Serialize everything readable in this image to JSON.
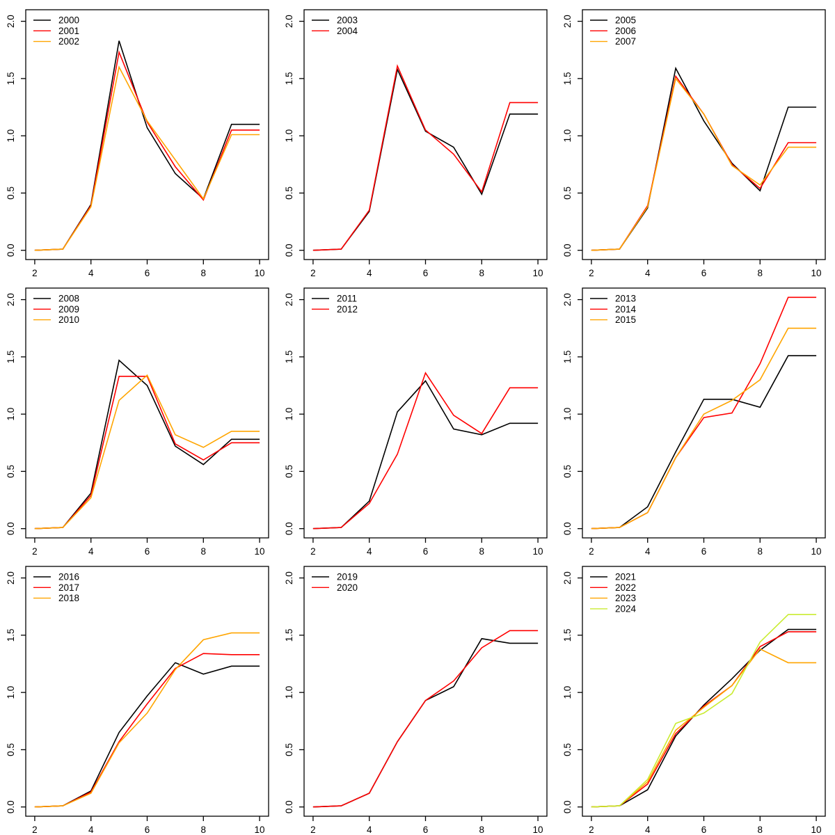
{
  "figure": {
    "background": "#FFFFFF",
    "axis_color": "#000000",
    "description": "3x3 grid of base-R style line charts, yearly curves 2000-2024",
    "palette": {
      "black": "#000000",
      "red": "#FF0000",
      "orange": "#FFA500",
      "yellowgreen": "#C9EC30"
    }
  },
  "chart_data": [
    {
      "type": "line",
      "x": [
        2,
        3,
        4,
        5,
        6,
        7,
        8,
        9,
        10
      ],
      "xlim": [
        2,
        10
      ],
      "ylim": [
        0,
        2.02
      ],
      "xticks": [
        2,
        4,
        6,
        8,
        10
      ],
      "yticks": [
        0,
        0.5,
        1,
        1.5,
        2
      ],
      "ytick_labels": [
        "0.0",
        "0.5",
        "1.0",
        "1.5",
        "2.0"
      ],
      "xlabel": "",
      "ylabel": "",
      "title": "",
      "grid": false,
      "legend_position": "top-left",
      "series": [
        {
          "name": "2000",
          "color": "#000000",
          "values": [
            0,
            0.01,
            0.4,
            1.83,
            1.07,
            0.67,
            0.45,
            1.1,
            1.1
          ]
        },
        {
          "name": "2001",
          "color": "#FF0000",
          "values": [
            0,
            0.01,
            0.39,
            1.73,
            1.12,
            0.73,
            0.44,
            1.05,
            1.05
          ]
        },
        {
          "name": "2002",
          "color": "#FFA500",
          "values": [
            0,
            0.01,
            0.38,
            1.6,
            1.13,
            0.79,
            0.45,
            1.01,
            1.01
          ]
        }
      ]
    },
    {
      "type": "line",
      "x": [
        2,
        3,
        4,
        5,
        6,
        7,
        8,
        9,
        10
      ],
      "xlim": [
        2,
        10
      ],
      "ylim": [
        0,
        2.02
      ],
      "xticks": [
        2,
        4,
        6,
        8,
        10
      ],
      "yticks": [
        0,
        0.5,
        1,
        1.5,
        2
      ],
      "ytick_labels": [
        "0.0",
        "0.5",
        "1.0",
        "1.5",
        "2.0"
      ],
      "xlabel": "",
      "ylabel": "",
      "title": "",
      "grid": false,
      "legend_position": "top-left",
      "series": [
        {
          "name": "2003",
          "color": "#000000",
          "values": [
            0,
            0.01,
            0.34,
            1.58,
            1.04,
            0.9,
            0.49,
            1.19,
            1.19
          ]
        },
        {
          "name": "2004",
          "color": "#FF0000",
          "values": [
            0,
            0.01,
            0.35,
            1.61,
            1.05,
            0.84,
            0.51,
            1.29,
            1.29
          ]
        }
      ]
    },
    {
      "type": "line",
      "x": [
        2,
        3,
        4,
        5,
        6,
        7,
        8,
        9,
        10
      ],
      "xlim": [
        2,
        10
      ],
      "ylim": [
        0,
        2.02
      ],
      "xticks": [
        2,
        4,
        6,
        8,
        10
      ],
      "yticks": [
        0,
        0.5,
        1,
        1.5,
        2
      ],
      "ytick_labels": [
        "0.0",
        "0.5",
        "1.0",
        "1.5",
        "2.0"
      ],
      "xlabel": "",
      "ylabel": "",
      "title": "",
      "grid": false,
      "legend_position": "top-left",
      "series": [
        {
          "name": "2005",
          "color": "#000000",
          "values": [
            0,
            0.01,
            0.37,
            1.59,
            1.13,
            0.76,
            0.52,
            1.25,
            1.25
          ]
        },
        {
          "name": "2006",
          "color": "#FF0000",
          "values": [
            0,
            0.01,
            0.39,
            1.52,
            1.19,
            0.75,
            0.54,
            0.94,
            0.94
          ]
        },
        {
          "name": "2007",
          "color": "#FFA500",
          "values": [
            0,
            0.01,
            0.38,
            1.5,
            1.19,
            0.74,
            0.57,
            0.9,
            0.9
          ]
        }
      ]
    },
    {
      "type": "line",
      "x": [
        2,
        3,
        4,
        5,
        6,
        7,
        8,
        9,
        10
      ],
      "xlim": [
        2,
        10
      ],
      "ylim": [
        0,
        2.02
      ],
      "xticks": [
        2,
        4,
        6,
        8,
        10
      ],
      "yticks": [
        0,
        0.5,
        1,
        1.5,
        2
      ],
      "ytick_labels": [
        "0.0",
        "0.5",
        "1.0",
        "1.5",
        "2.0"
      ],
      "xlabel": "",
      "ylabel": "",
      "title": "",
      "grid": false,
      "legend_position": "top-left",
      "series": [
        {
          "name": "2008",
          "color": "#000000",
          "values": [
            0,
            0.01,
            0.31,
            1.47,
            1.25,
            0.72,
            0.56,
            0.78,
            0.78
          ]
        },
        {
          "name": "2009",
          "color": "#FF0000",
          "values": [
            0,
            0.01,
            0.29,
            1.33,
            1.33,
            0.74,
            0.6,
            0.75,
            0.75
          ]
        },
        {
          "name": "2010",
          "color": "#FFA500",
          "values": [
            0,
            0.01,
            0.27,
            1.12,
            1.34,
            0.82,
            0.71,
            0.85,
            0.85
          ]
        }
      ]
    },
    {
      "type": "line",
      "x": [
        2,
        3,
        4,
        5,
        6,
        7,
        8,
        9,
        10
      ],
      "xlim": [
        2,
        10
      ],
      "ylim": [
        0,
        2.02
      ],
      "xticks": [
        2,
        4,
        6,
        8,
        10
      ],
      "yticks": [
        0,
        0.5,
        1,
        1.5,
        2
      ],
      "ytick_labels": [
        "0.0",
        "0.5",
        "1.0",
        "1.5",
        "2.0"
      ],
      "xlabel": "",
      "ylabel": "",
      "title": "",
      "grid": false,
      "legend_position": "top-left",
      "series": [
        {
          "name": "2011",
          "color": "#000000",
          "values": [
            0,
            0.01,
            0.24,
            1.02,
            1.29,
            0.87,
            0.82,
            0.92,
            0.92
          ]
        },
        {
          "name": "2012",
          "color": "#FF0000",
          "values": [
            0,
            0.01,
            0.22,
            0.65,
            1.36,
            0.99,
            0.83,
            1.23,
            1.23
          ]
        }
      ]
    },
    {
      "type": "line",
      "x": [
        2,
        3,
        4,
        5,
        6,
        7,
        8,
        9,
        10
      ],
      "xlim": [
        2,
        10
      ],
      "ylim": [
        0,
        2.02
      ],
      "xticks": [
        2,
        4,
        6,
        8,
        10
      ],
      "yticks": [
        0,
        0.5,
        1,
        1.5,
        2
      ],
      "ytick_labels": [
        "0.0",
        "0.5",
        "1.0",
        "1.5",
        "2.0"
      ],
      "xlabel": "",
      "ylabel": "",
      "title": "",
      "grid": false,
      "legend_position": "top-left",
      "series": [
        {
          "name": "2013",
          "color": "#000000",
          "values": [
            0,
            0.01,
            0.19,
            0.67,
            1.13,
            1.13,
            1.06,
            1.51,
            1.51
          ]
        },
        {
          "name": "2014",
          "color": "#FF0000",
          "values": [
            0,
            0.01,
            0.14,
            0.62,
            0.97,
            1.01,
            1.44,
            2.02,
            2.02
          ]
        },
        {
          "name": "2015",
          "color": "#FFA500",
          "values": [
            0,
            0.01,
            0.14,
            0.62,
            1.0,
            1.12,
            1.3,
            1.75,
            1.75
          ]
        }
      ]
    },
    {
      "type": "line",
      "x": [
        2,
        3,
        4,
        5,
        6,
        7,
        8,
        9,
        10
      ],
      "xlim": [
        2,
        10
      ],
      "ylim": [
        0,
        2.02
      ],
      "xticks": [
        2,
        4,
        6,
        8,
        10
      ],
      "yticks": [
        0,
        0.5,
        1,
        1.5,
        2
      ],
      "ytick_labels": [
        "0.0",
        "0.5",
        "1.0",
        "1.5",
        "2.0"
      ],
      "xlabel": "",
      "ylabel": "",
      "title": "",
      "grid": false,
      "legend_position": "top-left",
      "series": [
        {
          "name": "2016",
          "color": "#000000",
          "values": [
            0,
            0.01,
            0.14,
            0.65,
            0.97,
            1.26,
            1.16,
            1.23,
            1.23
          ]
        },
        {
          "name": "2017",
          "color": "#FF0000",
          "values": [
            0,
            0.01,
            0.13,
            0.57,
            0.9,
            1.21,
            1.34,
            1.33,
            1.33
          ]
        },
        {
          "name": "2018",
          "color": "#FFA500",
          "values": [
            0,
            0.01,
            0.12,
            0.56,
            0.82,
            1.2,
            1.46,
            1.52,
            1.52
          ]
        }
      ]
    },
    {
      "type": "line",
      "x": [
        2,
        3,
        4,
        5,
        6,
        7,
        8,
        9,
        10
      ],
      "xlim": [
        2,
        10
      ],
      "ylim": [
        0,
        2.02
      ],
      "xticks": [
        2,
        4,
        6,
        8,
        10
      ],
      "yticks": [
        0,
        0.5,
        1,
        1.5,
        2
      ],
      "ytick_labels": [
        "0.0",
        "0.5",
        "1.0",
        "1.5",
        "2.0"
      ],
      "xlabel": "",
      "ylabel": "",
      "title": "",
      "grid": false,
      "legend_position": "top-left",
      "series": [
        {
          "name": "2019",
          "color": "#000000",
          "values": [
            0,
            0.01,
            0.12,
            0.57,
            0.93,
            1.05,
            1.47,
            1.43,
            1.43
          ]
        },
        {
          "name": "2020",
          "color": "#FF0000",
          "values": [
            0,
            0.01,
            0.12,
            0.57,
            0.93,
            1.1,
            1.39,
            1.54,
            1.54
          ]
        }
      ]
    },
    {
      "type": "line",
      "x": [
        2,
        3,
        4,
        5,
        6,
        7,
        8,
        9,
        10
      ],
      "xlim": [
        2,
        10
      ],
      "ylim": [
        0,
        2.02
      ],
      "xticks": [
        2,
        4,
        6,
        8,
        10
      ],
      "yticks": [
        0,
        0.5,
        1,
        1.5,
        2
      ],
      "ytick_labels": [
        "0.0",
        "0.5",
        "1.0",
        "1.5",
        "2.0"
      ],
      "xlabel": "",
      "ylabel": "",
      "title": "",
      "grid": false,
      "legend_position": "top-left",
      "series": [
        {
          "name": "2021",
          "color": "#000000",
          "values": [
            0,
            0.01,
            0.15,
            0.62,
            0.89,
            1.12,
            1.37,
            1.55,
            1.55
          ]
        },
        {
          "name": "2022",
          "color": "#FF0000",
          "values": [
            0,
            0.01,
            0.2,
            0.64,
            0.88,
            1.06,
            1.4,
            1.53,
            1.53
          ]
        },
        {
          "name": "2023",
          "color": "#FFA500",
          "values": [
            0,
            0.01,
            0.22,
            0.67,
            0.87,
            1.06,
            1.38,
            1.26,
            1.26
          ]
        },
        {
          "name": "2024",
          "color": "#C9EC30",
          "values": [
            0,
            0.01,
            0.24,
            0.73,
            0.82,
            0.99,
            1.44,
            1.68,
            1.68
          ]
        }
      ]
    }
  ]
}
